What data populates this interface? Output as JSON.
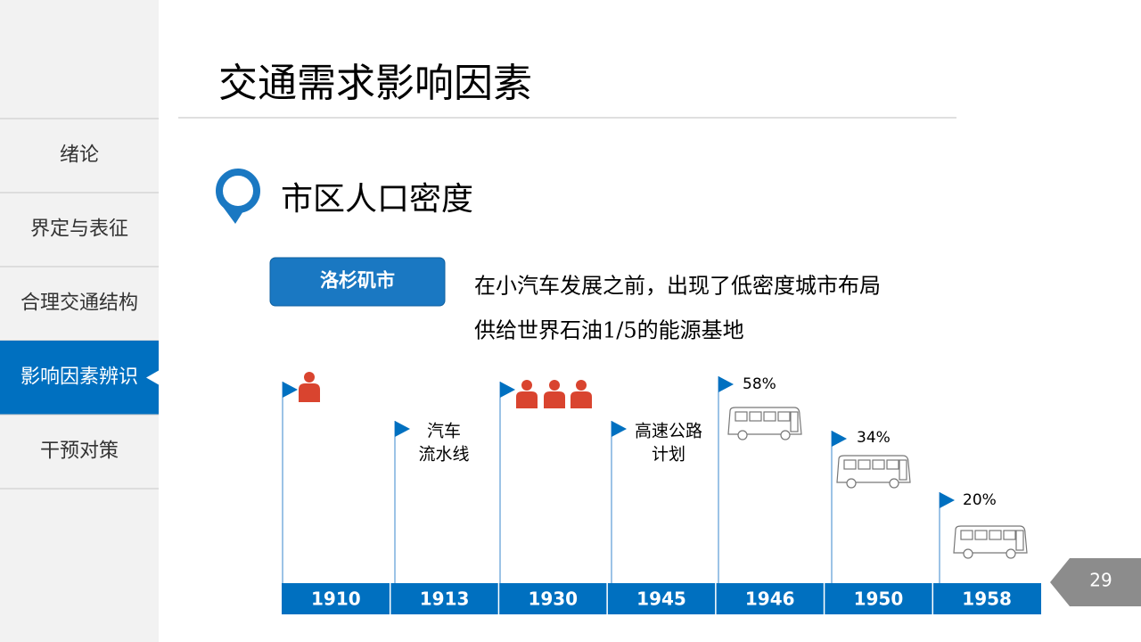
{
  "sidebar": {
    "items": [
      "绪论",
      "界定与表征",
      "合理交通结构",
      "影响因素辨识",
      "干预对策"
    ],
    "active": 3
  },
  "header": {
    "title": "交通需求影响因素"
  },
  "section": {
    "title": "市区人口密度"
  },
  "badge": {
    "label": "洛杉矶市"
  },
  "description": {
    "lines": [
      "在小汽车发展之前，出现了低密度城市布局",
      "供给世界石油1/5的能源基地"
    ]
  },
  "timeline": {
    "years": [
      "1910",
      "1913",
      "1930",
      "1945",
      "1946",
      "1950",
      "1958"
    ],
    "notes": [
      [
        "汽车",
        "流水线"
      ],
      [
        "高速公路",
        "计划"
      ],
      [
        "58%"
      ],
      [
        "34%"
      ],
      [
        "20%"
      ]
    ]
  },
  "page_number": "29"
}
